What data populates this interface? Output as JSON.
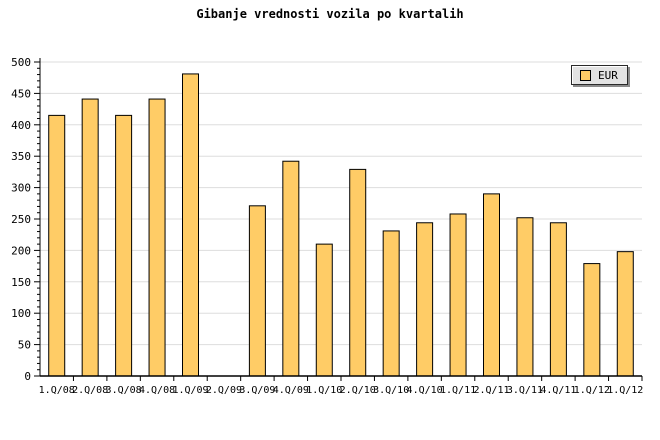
{
  "title": "Gibanje vrednosti vozila po kvartalih",
  "legend": {
    "label": "EUR",
    "swatch_color": "#FFCC66"
  },
  "chart_data": {
    "type": "bar",
    "title": "Gibanje vrednosti vozila po kvartalih",
    "categories": [
      "1.Q/08",
      "2.Q/08",
      "3.Q/08",
      "4.Q/08",
      "1.Q/09",
      "2.Q/09",
      "3.Q/09",
      "4.Q/09",
      "1.Q/10",
      "2.Q/10",
      "3.Q/10",
      "4.Q/10",
      "1.Q/11",
      "2.Q/11",
      "3.Q/11",
      "4.Q/11",
      "1.Q/12",
      "1.Q/12"
    ],
    "series": [
      {
        "name": "EUR",
        "values": [
          415,
          441,
          415,
          441,
          481,
          null,
          271,
          342,
          210,
          329,
          231,
          244,
          258,
          290,
          252,
          244,
          179,
          198
        ]
      }
    ],
    "xlabel": "",
    "ylabel": "",
    "ylim": [
      0,
      500
    ],
    "ytick_step": 50,
    "ytick_minor_step": 10,
    "y_tick_labels": [
      "0",
      "50",
      "100",
      "150",
      "200",
      "250",
      "300",
      "350",
      "400",
      "450",
      "500"
    ],
    "grid": "horizontal",
    "legend_position": "top-right",
    "colors": {
      "bar_fill": "#FFCC66",
      "bar_border": "#000000",
      "grid_line": "#DDDDDD",
      "axis": "#000000",
      "background": "#FFFFFF",
      "legend_fill": "#E3E3E3"
    }
  }
}
